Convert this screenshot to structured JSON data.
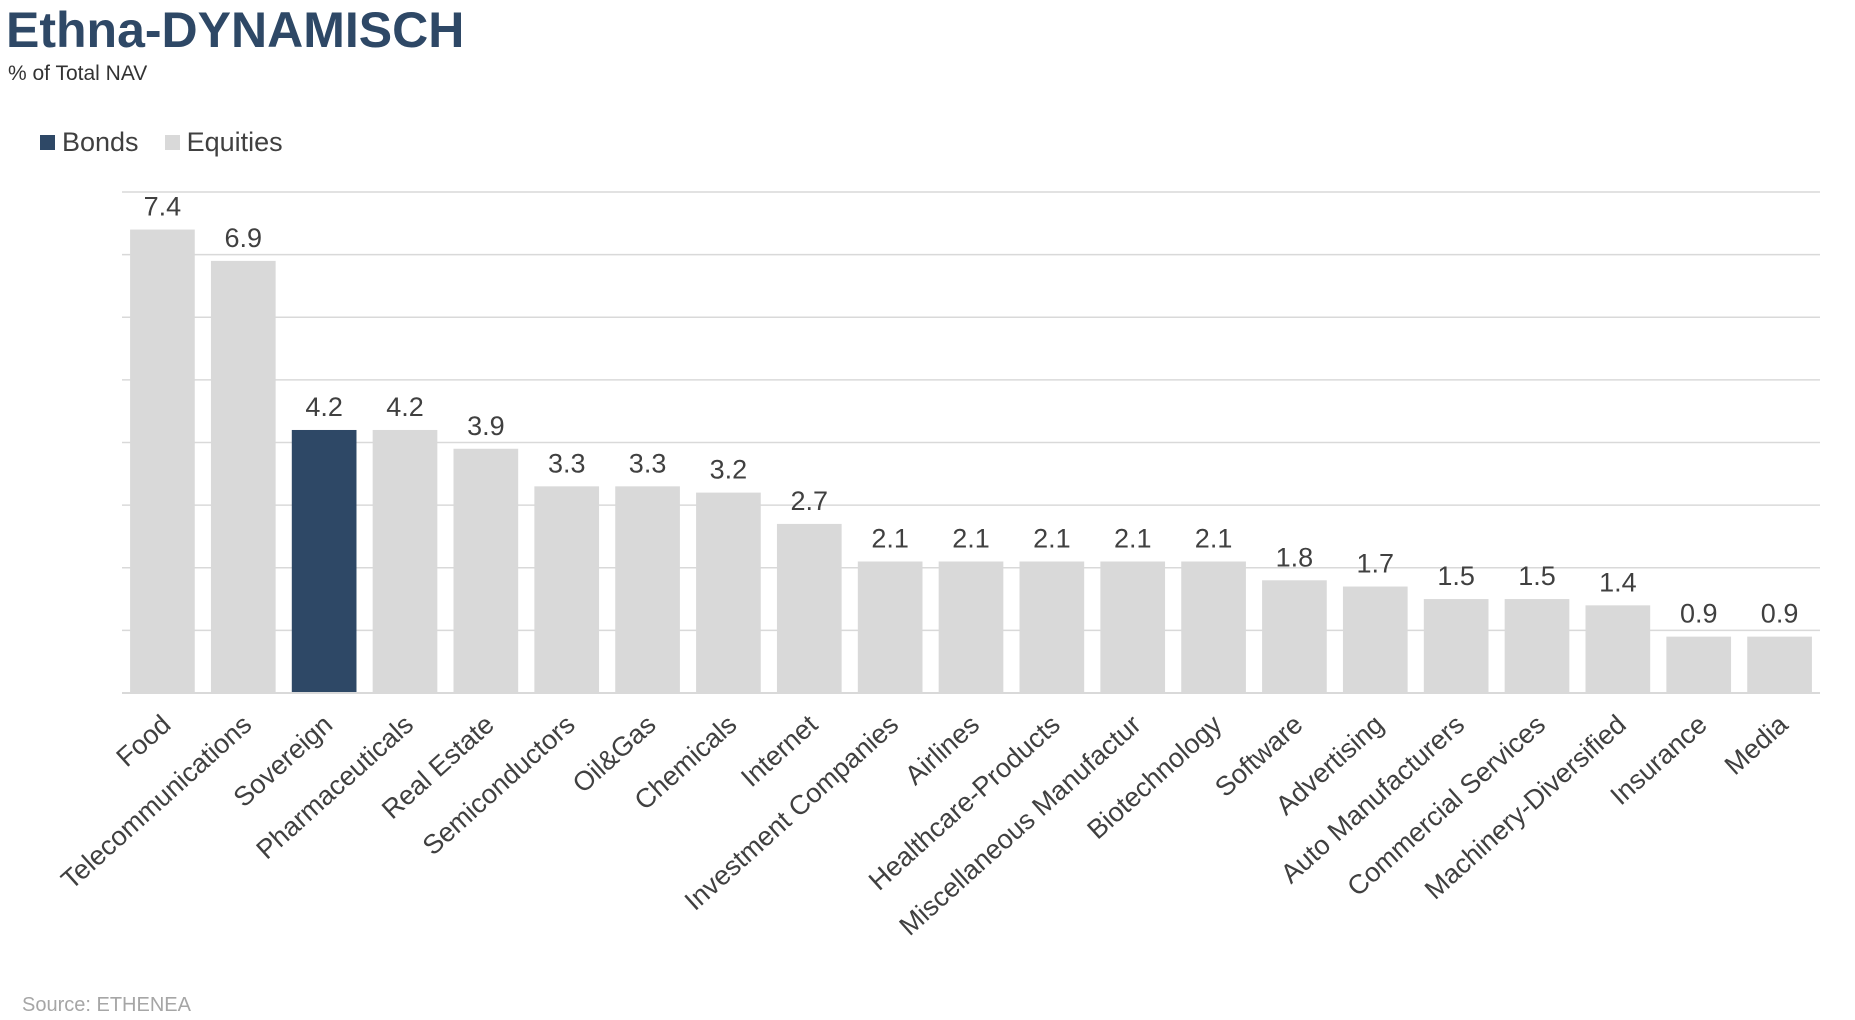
{
  "title": "Ethna-DYNAMISCH",
  "subtitle": "% of Total NAV",
  "source": "Source: ETHENEA",
  "colors": {
    "bonds": "#2e4866",
    "equities": "#d9d9d9",
    "grid": "#d9d9d9"
  },
  "legend": [
    {
      "label": "Bonds",
      "color": "#2e4866"
    },
    {
      "label": "Equities",
      "color": "#d9d9d9"
    }
  ],
  "chart_data": {
    "type": "bar",
    "title": "Ethna-DYNAMISCH",
    "subtitle": "% of Total NAV",
    "ylim": [
      0,
      8
    ],
    "grid": true,
    "legend_position": "top-left",
    "categories": [
      "Food",
      "Telecommunications",
      "Sovereign",
      "Pharmaceuticals",
      "Real Estate",
      "Semiconductors",
      "Oil&Gas",
      "Chemicals",
      "Internet",
      "Investment Companies",
      "Airlines",
      "Healthcare-Products",
      "Miscellaneous Manufactur",
      "Biotechnology",
      "Software",
      "Advertising",
      "Auto Manufacturers",
      "Commercial Services",
      "Machinery-Diversified",
      "Insurance",
      "Media"
    ],
    "values": [
      7.4,
      6.9,
      4.2,
      4.2,
      3.9,
      3.3,
      3.3,
      3.2,
      2.7,
      2.1,
      2.1,
      2.1,
      2.1,
      2.1,
      1.8,
      1.7,
      1.5,
      1.5,
      1.4,
      0.9,
      0.9
    ],
    "labels": [
      "7.4",
      "6.9",
      "4.2",
      "4.2",
      "3.9",
      "3.3",
      "3.3",
      "3.2",
      "2.7",
      "2.1",
      "2.1",
      "2.1",
      "2.1",
      "2.1",
      "1.8",
      "1.7",
      "1.5",
      "1.5",
      "1.4",
      "0.9",
      "0.9"
    ],
    "series_type": [
      "Equities",
      "Equities",
      "Bonds",
      "Equities",
      "Equities",
      "Equities",
      "Equities",
      "Equities",
      "Equities",
      "Equities",
      "Equities",
      "Equities",
      "Equities",
      "Equities",
      "Equities",
      "Equities",
      "Equities",
      "Equities",
      "Equities",
      "Equities",
      "Equities"
    ]
  }
}
